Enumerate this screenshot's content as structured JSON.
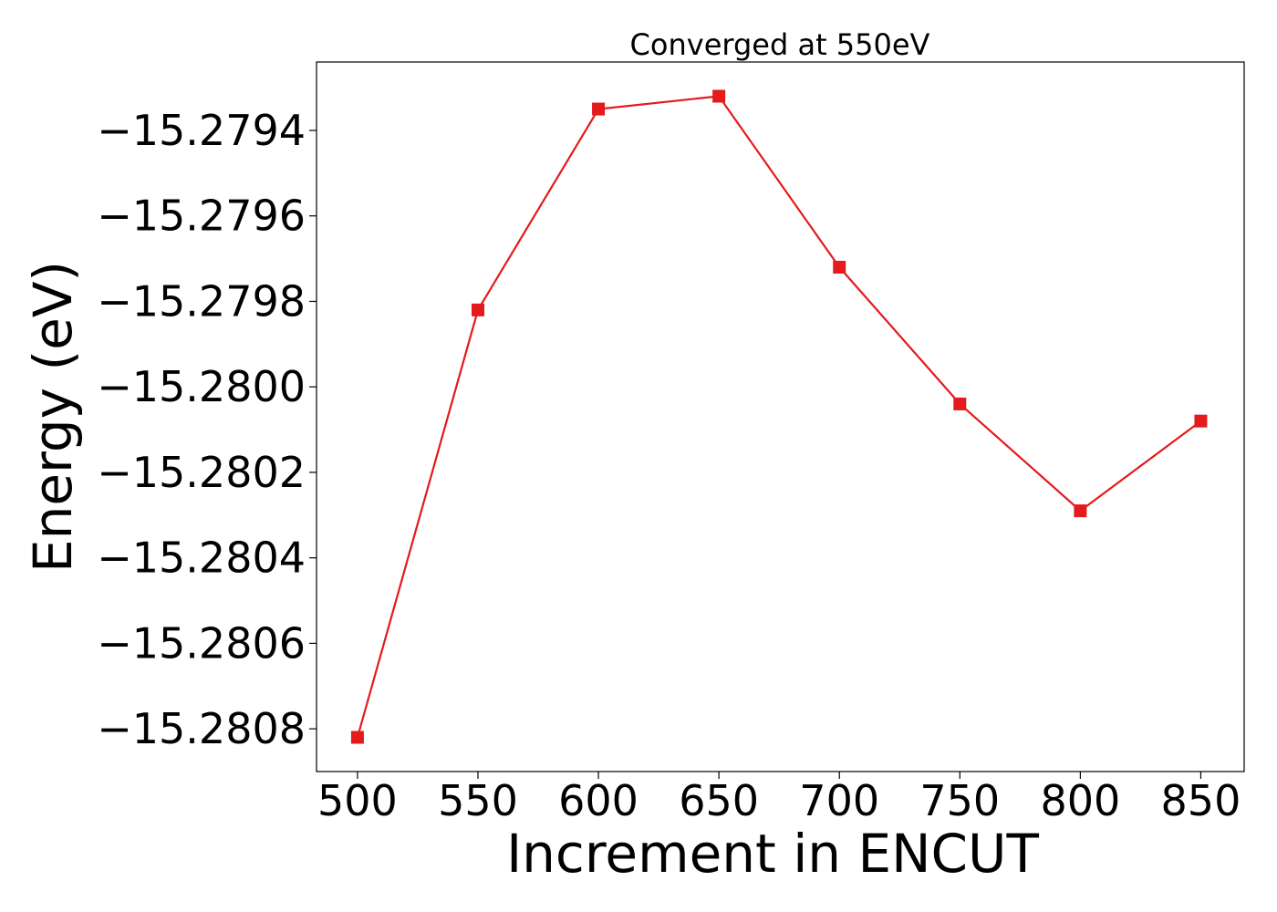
{
  "chart_data": {
    "type": "line",
    "title": "Converged at 550eV",
    "xlabel": "Increment in ENCUT",
    "ylabel": "Energy (eV)",
    "x": [
      500,
      550,
      600,
      650,
      700,
      750,
      800,
      850
    ],
    "series": [
      {
        "values": [
          -15.28082,
          -15.27982,
          -15.27935,
          -15.27932,
          -15.27972,
          -15.28004,
          -15.28029,
          -15.28008
        ],
        "color": "#e41a1c",
        "marker": "square"
      }
    ],
    "xticks": [
      500,
      550,
      600,
      650,
      700,
      750,
      800,
      850
    ],
    "xtick_labels": [
      "500",
      "550",
      "600",
      "650",
      "700",
      "750",
      "800",
      "850"
    ],
    "yticks": [
      -15.2794,
      -15.2796,
      -15.2798,
      -15.28,
      -15.2802,
      -15.2804,
      -15.2806,
      -15.2808
    ],
    "ytick_labels": [
      "−15.2794",
      "−15.2796",
      "−15.2798",
      "−15.2800",
      "−15.2802",
      "−15.2804",
      "−15.2806",
      "−15.2808"
    ],
    "xlim": [
      483,
      868
    ],
    "ylim": [
      -15.2809,
      -15.27924
    ],
    "grid": false,
    "legend": false
  }
}
